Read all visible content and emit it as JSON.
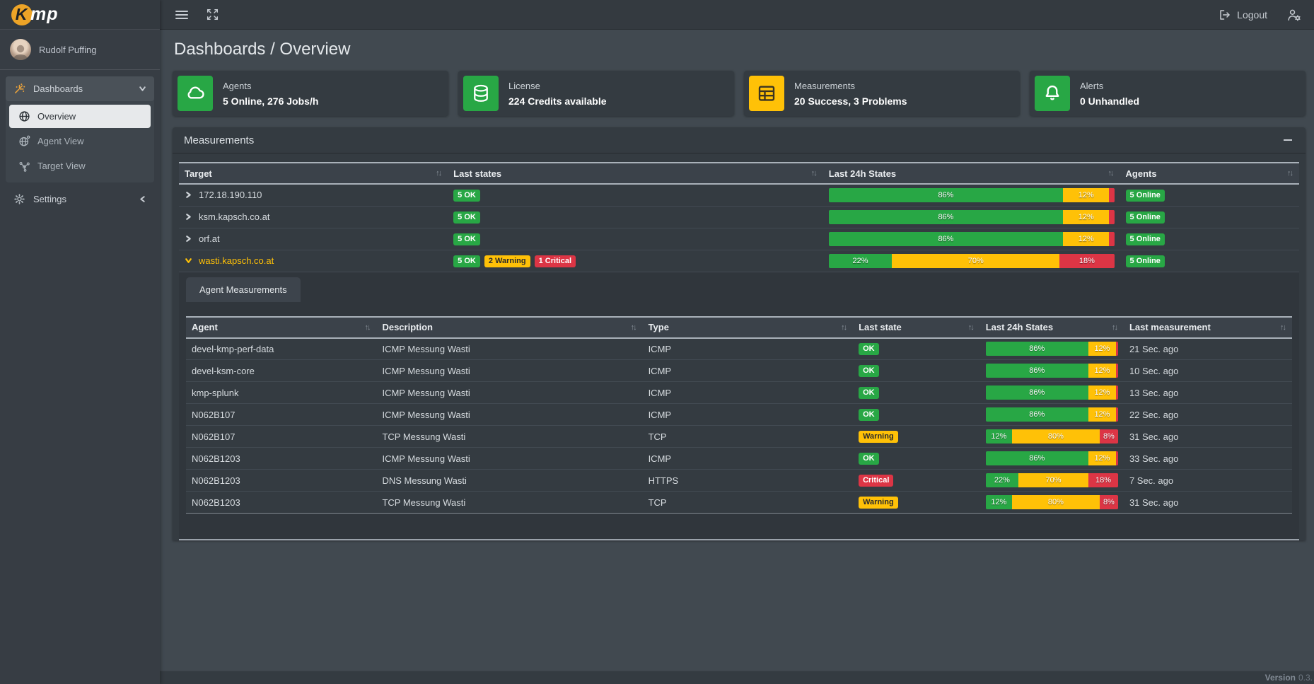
{
  "brand": {
    "logo_k": "K",
    "logo_rest": "mp"
  },
  "topbar": {
    "logout_label": "Logout"
  },
  "sidebar": {
    "user_name": "Rudolf Puffing",
    "dashboards_label": "Dashboards",
    "overview_label": "Overview",
    "agent_view_label": "Agent View",
    "target_view_label": "Target View",
    "settings_label": "Settings"
  },
  "header": {
    "title": "Dashboards / Overview"
  },
  "colors": {
    "success": "#28a745",
    "warning": "#ffc107",
    "danger": "#dc3545",
    "accent_orange": "#e9a23b"
  },
  "cards": [
    {
      "title": "Agents",
      "value": "5 Online, 276 Jobs/h",
      "icon": "cloud-icon",
      "variant": "success"
    },
    {
      "title": "License",
      "value": "224 Credits available",
      "icon": "database-icon",
      "variant": "success"
    },
    {
      "title": "Measurements",
      "value": "20 Success, 3 Problems",
      "icon": "table-icon",
      "variant": "warning"
    },
    {
      "title": "Alerts",
      "value": "0 Unhandled",
      "icon": "bell-icon",
      "variant": "success"
    }
  ],
  "panel": {
    "title": "Measurements",
    "table": {
      "columns": [
        "Target",
        "Last states",
        "Last 24h States",
        "Agents"
      ],
      "rows": [
        {
          "target": "172.18.190.110",
          "expanded": false,
          "states": [
            {
              "text": "5 OK",
              "variant": "success"
            }
          ],
          "bar": [
            {
              "pct": 86,
              "variant": "success",
              "label": "86%"
            },
            {
              "pct": 12,
              "variant": "warning",
              "label": "12%"
            },
            {
              "pct": 2,
              "variant": "danger",
              "label": ""
            }
          ],
          "agents": {
            "text": "5 Online",
            "variant": "success"
          }
        },
        {
          "target": "ksm.kapsch.co.at",
          "expanded": false,
          "states": [
            {
              "text": "5 OK",
              "variant": "success"
            }
          ],
          "bar": [
            {
              "pct": 86,
              "variant": "success",
              "label": "86%"
            },
            {
              "pct": 12,
              "variant": "warning",
              "label": "12%"
            },
            {
              "pct": 2,
              "variant": "danger",
              "label": ""
            }
          ],
          "agents": {
            "text": "5 Online",
            "variant": "success"
          }
        },
        {
          "target": "orf.at",
          "expanded": false,
          "states": [
            {
              "text": "5 OK",
              "variant": "success"
            }
          ],
          "bar": [
            {
              "pct": 86,
              "variant": "success",
              "label": "86%"
            },
            {
              "pct": 12,
              "variant": "warning",
              "label": "12%"
            },
            {
              "pct": 2,
              "variant": "danger",
              "label": ""
            }
          ],
          "agents": {
            "text": "5 Online",
            "variant": "success"
          }
        },
        {
          "target": "wasti.kapsch.co.at",
          "expanded": true,
          "states": [
            {
              "text": "5 OK",
              "variant": "success"
            },
            {
              "text": "2 Warning",
              "variant": "warning"
            },
            {
              "text": "1 Critical",
              "variant": "danger"
            }
          ],
          "bar": [
            {
              "pct": 22,
              "variant": "success",
              "label": "22%"
            },
            {
              "pct": 70,
              "variant": "warning",
              "label": "70%"
            },
            {
              "pct": 18,
              "variant": "danger",
              "label": "18%"
            }
          ],
          "agents": {
            "text": "5 Online",
            "variant": "success"
          }
        }
      ]
    },
    "subpanel": {
      "tab_label": "Agent Measurements",
      "columns": [
        "Agent",
        "Description",
        "Type",
        "Last state",
        "Last 24h States",
        "Last measurement"
      ],
      "rows": [
        {
          "agent": "devel-kmp-perf-data",
          "description": "ICMP Messung Wasti",
          "type": "ICMP",
          "last_state": {
            "text": "OK",
            "variant": "success"
          },
          "bar": [
            {
              "pct": 86,
              "variant": "success",
              "label": "86%"
            },
            {
              "pct": 12,
              "variant": "warning",
              "label": "12%"
            },
            {
              "pct": 2,
              "variant": "danger",
              "label": ""
            }
          ],
          "last_measurement": "21 Sec. ago"
        },
        {
          "agent": "devel-ksm-core",
          "description": "ICMP Messung Wasti",
          "type": "ICMP",
          "last_state": {
            "text": "OK",
            "variant": "success"
          },
          "bar": [
            {
              "pct": 86,
              "variant": "success",
              "label": "86%"
            },
            {
              "pct": 12,
              "variant": "warning",
              "label": "12%"
            },
            {
              "pct": 2,
              "variant": "danger",
              "label": ""
            }
          ],
          "last_measurement": "10 Sec. ago"
        },
        {
          "agent": "kmp-splunk",
          "description": "ICMP Messung Wasti",
          "type": "ICMP",
          "last_state": {
            "text": "OK",
            "variant": "success"
          },
          "bar": [
            {
              "pct": 86,
              "variant": "success",
              "label": "86%"
            },
            {
              "pct": 12,
              "variant": "warning",
              "label": "12%"
            },
            {
              "pct": 2,
              "variant": "danger",
              "label": ""
            }
          ],
          "last_measurement": "13 Sec. ago"
        },
        {
          "agent": "N062B107",
          "description": "ICMP Messung Wasti",
          "type": "ICMP",
          "last_state": {
            "text": "OK",
            "variant": "success"
          },
          "bar": [
            {
              "pct": 86,
              "variant": "success",
              "label": "86%"
            },
            {
              "pct": 12,
              "variant": "warning",
              "label": "12%"
            },
            {
              "pct": 2,
              "variant": "danger",
              "label": ""
            }
          ],
          "last_measurement": "22 Sec. ago"
        },
        {
          "agent": "N062B107",
          "description": "TCP Messung Wasti",
          "type": "TCP",
          "last_state": {
            "text": "Warning",
            "variant": "warning"
          },
          "bar": [
            {
              "pct": 12,
              "variant": "success",
              "label": "12%"
            },
            {
              "pct": 80,
              "variant": "warning",
              "label": "80%"
            },
            {
              "pct": 8,
              "variant": "danger",
              "label": "8%"
            }
          ],
          "last_measurement": "31 Sec. ago"
        },
        {
          "agent": "N062B1203",
          "description": "ICMP Messung Wasti",
          "type": "ICMP",
          "last_state": {
            "text": "OK",
            "variant": "success"
          },
          "bar": [
            {
              "pct": 86,
              "variant": "success",
              "label": "86%"
            },
            {
              "pct": 12,
              "variant": "warning",
              "label": "12%"
            },
            {
              "pct": 2,
              "variant": "danger",
              "label": ""
            }
          ],
          "last_measurement": "33 Sec. ago"
        },
        {
          "agent": "N062B1203",
          "description": "DNS Messung Wasti",
          "type": "HTTPS",
          "last_state": {
            "text": "Critical",
            "variant": "danger"
          },
          "bar": [
            {
              "pct": 22,
              "variant": "success",
              "label": "22%"
            },
            {
              "pct": 70,
              "variant": "warning",
              "label": "70%"
            },
            {
              "pct": 18,
              "variant": "danger",
              "label": "18%"
            }
          ],
          "last_measurement": "7 Sec. ago"
        },
        {
          "agent": "N062B1203",
          "description": "TCP Messung Wasti",
          "type": "TCP",
          "last_state": {
            "text": "Warning",
            "variant": "warning"
          },
          "bar": [
            {
              "pct": 12,
              "variant": "success",
              "label": "12%"
            },
            {
              "pct": 80,
              "variant": "warning",
              "label": "80%"
            },
            {
              "pct": 8,
              "variant": "danger",
              "label": "8%"
            }
          ],
          "last_measurement": "31 Sec. ago"
        }
      ]
    }
  },
  "footer": {
    "version_label": "Version",
    "version_value": "0.3."
  }
}
